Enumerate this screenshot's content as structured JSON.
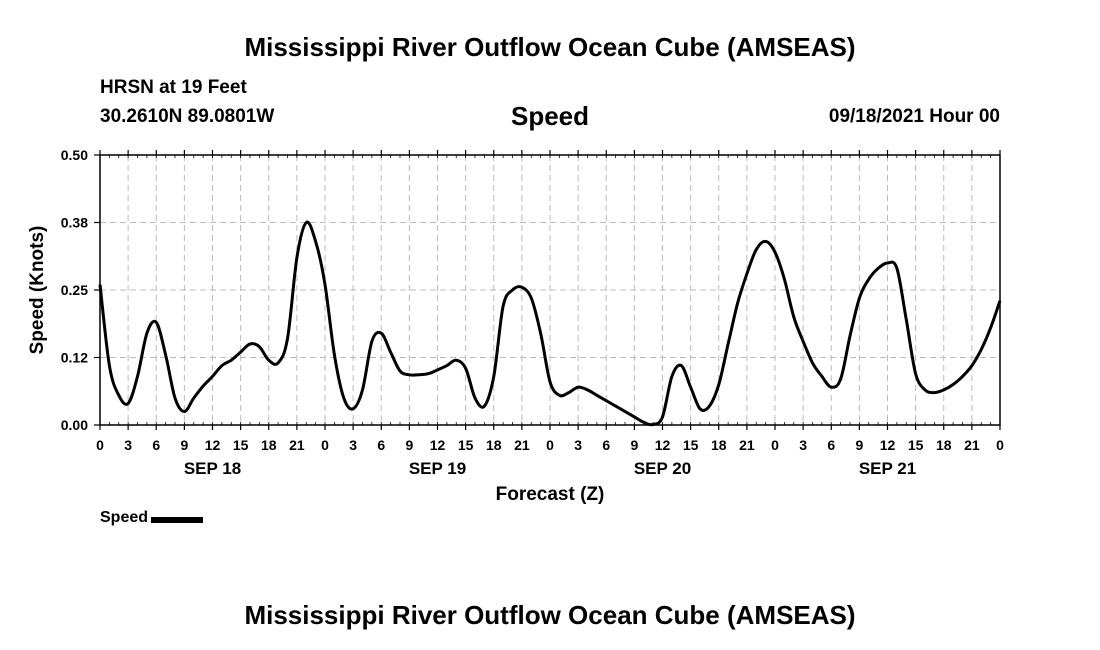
{
  "title": "Mississippi River Outflow Ocean Cube (AMSEAS)",
  "footer_title": "Mississippi River Outflow Ocean Cube (AMSEAS)",
  "station": "HRSN at 19 Feet",
  "coordinates": "30.2610N  89.0801W",
  "variable": "Speed",
  "datetime": "09/18/2021 Hour 00",
  "legend_label": "Speed",
  "colors": {
    "line": "#000000",
    "grid": "#bbbbbb",
    "background": "#ffffff"
  },
  "chart_data": {
    "type": "line",
    "title": "Speed",
    "xlabel": "Forecast (Z)",
    "ylabel": "Speed (Knots)",
    "xlim": [
      0,
      96
    ],
    "ylim": [
      0,
      0.5
    ],
    "y_ticks": [
      0.0,
      0.125,
      0.25,
      0.375,
      0.5
    ],
    "y_tick_labels": [
      "0.00",
      "0.12",
      "0.25",
      "0.38",
      "0.50"
    ],
    "x_tick_hours": [
      0,
      3,
      6,
      9,
      12,
      15,
      18,
      21,
      24,
      27,
      30,
      33,
      36,
      39,
      42,
      45,
      48,
      51,
      54,
      57,
      60,
      63,
      66,
      69,
      72,
      75,
      78,
      81,
      84,
      87,
      90,
      93,
      96
    ],
    "x_tick_labels": [
      "0",
      "3",
      "6",
      "9",
      "12",
      "15",
      "18",
      "21",
      "0",
      "3",
      "6",
      "9",
      "12",
      "15",
      "18",
      "21",
      "0",
      "3",
      "6",
      "9",
      "12",
      "15",
      "18",
      "21",
      "0",
      "3",
      "6",
      "9",
      "12",
      "15",
      "18",
      "21",
      "0"
    ],
    "day_labels": [
      {
        "hour": 12,
        "label": "SEP 18"
      },
      {
        "hour": 36,
        "label": "SEP 19"
      },
      {
        "hour": 60,
        "label": "SEP 20"
      },
      {
        "hour": 84,
        "label": "SEP 21"
      }
    ],
    "grid": true,
    "legend": "bottom-left",
    "series": [
      {
        "name": "Speed",
        "x": [
          0,
          1,
          2,
          3,
          4,
          5,
          6,
          7,
          8,
          9,
          10,
          11,
          12,
          13,
          14,
          15,
          16,
          17,
          18,
          19,
          20,
          21,
          22,
          23,
          24,
          25,
          26,
          27,
          28,
          29,
          30,
          31,
          32,
          33,
          34,
          35,
          36,
          37,
          38,
          39,
          40,
          41,
          42,
          43,
          44,
          45,
          46,
          47,
          48,
          49,
          50,
          51,
          52,
          53,
          54,
          55,
          56,
          57,
          58,
          59,
          60,
          61,
          62,
          63,
          64,
          65,
          66,
          67,
          68,
          69,
          70,
          71,
          72,
          73,
          74,
          75,
          76,
          77,
          78,
          79,
          80,
          81,
          82,
          83,
          84,
          85,
          86,
          87,
          88,
          89,
          90,
          91,
          92,
          93,
          94,
          95,
          96
        ],
        "values": [
          0.26,
          0.11,
          0.055,
          0.04,
          0.09,
          0.17,
          0.19,
          0.13,
          0.05,
          0.025,
          0.05,
          0.072,
          0.09,
          0.11,
          0.12,
          0.135,
          0.15,
          0.145,
          0.12,
          0.115,
          0.16,
          0.31,
          0.375,
          0.34,
          0.26,
          0.13,
          0.05,
          0.03,
          0.065,
          0.155,
          0.17,
          0.135,
          0.1,
          0.093,
          0.093,
          0.095,
          0.102,
          0.11,
          0.12,
          0.105,
          0.05,
          0.035,
          0.09,
          0.22,
          0.25,
          0.255,
          0.235,
          0.17,
          0.08,
          0.055,
          0.06,
          0.07,
          0.065,
          0.055,
          0.045,
          0.035,
          0.025,
          0.015,
          0.005,
          0.001,
          0.015,
          0.09,
          0.11,
          0.07,
          0.03,
          0.035,
          0.075,
          0.15,
          0.225,
          0.28,
          0.325,
          0.34,
          0.32,
          0.27,
          0.2,
          0.155,
          0.115,
          0.09,
          0.07,
          0.085,
          0.165,
          0.235,
          0.27,
          0.29,
          0.3,
          0.29,
          0.195,
          0.095,
          0.065,
          0.06,
          0.065,
          0.075,
          0.09,
          0.11,
          0.14,
          0.18,
          0.23
        ]
      }
    ]
  }
}
